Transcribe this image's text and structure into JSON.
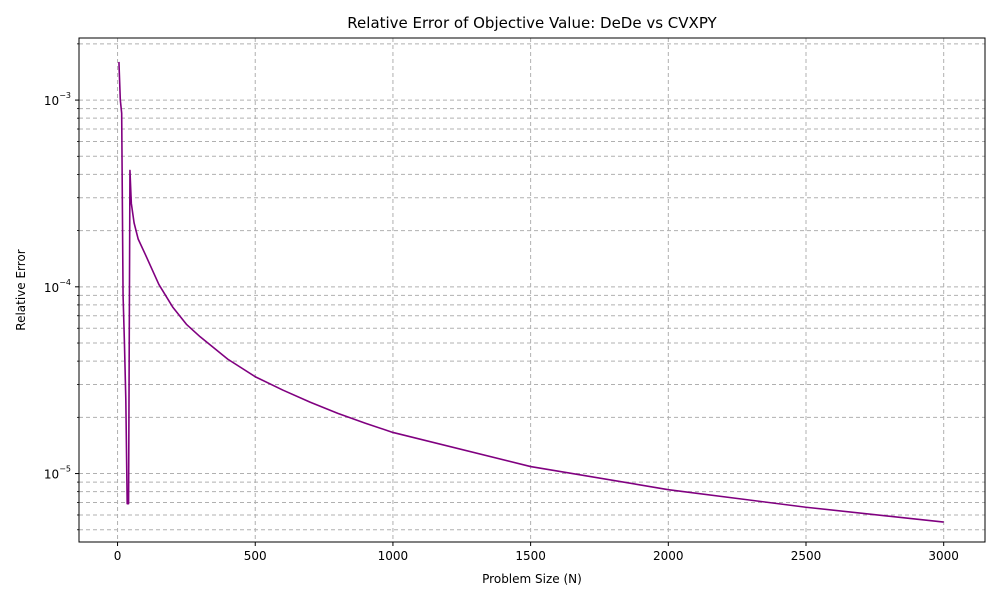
{
  "chart_data": {
    "type": "line",
    "title": "Relative Error of Objective Value: DeDe vs CVXPY",
    "xlabel": "Problem Size (N)",
    "ylabel": "Relative Error",
    "xlim": [
      -140,
      3150
    ],
    "ylim": [
      4.3e-06,
      0.00215
    ],
    "yscale": "log",
    "grid": true,
    "line_color": "#800080",
    "x_ticks": [
      {
        "value": 0,
        "label": "0"
      },
      {
        "value": 500,
        "label": "500"
      },
      {
        "value": 1000,
        "label": "1000"
      },
      {
        "value": 1500,
        "label": "1500"
      },
      {
        "value": 2000,
        "label": "2000"
      },
      {
        "value": 2500,
        "label": "2500"
      },
      {
        "value": 3000,
        "label": "3000"
      }
    ],
    "y_major_ticks": [
      {
        "value": 1e-05,
        "base": "10",
        "exp": "−5"
      },
      {
        "value": 0.0001,
        "base": "10",
        "exp": "−4"
      },
      {
        "value": 0.001,
        "base": "10",
        "exp": "−3"
      }
    ],
    "y_minor_ticks": [
      5e-06,
      6e-06,
      7e-06,
      8e-06,
      9e-06,
      2e-05,
      3e-05,
      4e-05,
      5e-05,
      6e-05,
      7e-05,
      8e-05,
      9e-05,
      0.0002,
      0.0003,
      0.0004,
      0.0005,
      0.0006,
      0.0007,
      0.0008,
      0.0009,
      0.002
    ],
    "series": [
      {
        "x": [
          5,
          10,
          15,
          20,
          25,
          30,
          35,
          40,
          45,
          50,
          60,
          75,
          100,
          150,
          200,
          250,
          300,
          400,
          500,
          600,
          700,
          800,
          900,
          1000,
          1500,
          2000,
          2500,
          3000
        ],
        "y": [
          0.0016,
          0.001,
          0.00085,
          9e-05,
          5e-05,
          2.5e-05,
          6.9e-06,
          6.9e-06,
          0.00042,
          0.00028,
          0.00022,
          0.00018,
          0.00015,
          0.000103,
          7.8e-05,
          6.3e-05,
          5.4e-05,
          4.1e-05,
          3.3e-05,
          2.8e-05,
          2.41e-05,
          2.1e-05,
          1.86e-05,
          1.66e-05,
          1.09e-05,
          8.2e-06,
          6.6e-06,
          5.5e-06
        ]
      }
    ]
  }
}
